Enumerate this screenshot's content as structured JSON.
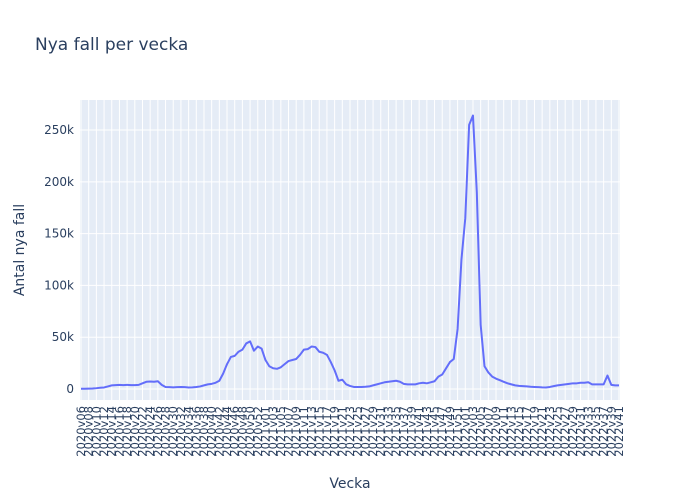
{
  "chart_data": {
    "type": "line",
    "title": "Nya fall per vecka",
    "x_label": "Vecka",
    "y_label": "Antal nya fall",
    "grid": true,
    "categories": [
      "2020v06",
      null,
      "2020v08",
      null,
      "2020v10",
      null,
      "2020v12",
      null,
      "2020v14",
      null,
      "2020v16",
      null,
      "2020v18",
      null,
      "2020v20",
      null,
      "2020v22",
      null,
      "2020v24",
      null,
      "2020v26",
      null,
      "2020v28",
      null,
      "2020v30",
      null,
      "2020v32",
      null,
      "2020v34",
      null,
      "2020v36",
      null,
      "2020v38",
      null,
      "2020v40",
      null,
      "2020v42",
      null,
      "2020v44",
      null,
      "2020v46",
      null,
      "2020v48",
      null,
      "2020v50",
      null,
      "2020v52",
      null,
      "2021v01",
      null,
      "2021v03",
      null,
      "2021v05",
      null,
      "2021v07",
      null,
      "2021v09",
      null,
      "2021v11",
      null,
      "2021v13",
      null,
      "2021v15",
      null,
      "2021v17",
      null,
      "2021v19",
      null,
      "2021v21",
      null,
      "2021v23",
      null,
      "2021v25",
      null,
      "2021v27",
      null,
      "2021v29",
      null,
      "2021v31",
      null,
      "2021v33",
      null,
      "2021v35",
      null,
      "2021v37",
      null,
      "2021v39",
      null,
      "2021v41",
      null,
      "2021v43",
      null,
      "2021v45",
      null,
      "2021v47",
      null,
      "2021v49",
      null,
      "2021v51",
      null,
      "2022v01",
      null,
      "2022v03",
      null,
      "2022v05",
      null,
      "2022v07",
      null,
      "2022v09",
      null,
      "2022v11",
      null,
      "2022v13",
      null,
      "2022v15",
      null,
      "2022v17",
      null,
      "2022v19",
      null,
      "2022v21",
      null,
      "2022v23",
      null,
      "2022v25",
      null,
      "2022v27",
      null,
      "2022v29",
      null,
      "2022v31",
      null,
      "2022v33",
      null,
      "2022v35",
      null,
      "2022v37",
      null,
      "2022v39",
      null,
      "2022v41"
    ],
    "series": [
      {
        "name": "Antal nya fall",
        "color": "#636efa",
        "values": [
          200,
          300,
          400,
          500,
          800,
          1200,
          1500,
          2500,
          3500,
          3800,
          4000,
          3800,
          4000,
          3800,
          3800,
          4000,
          5500,
          7000,
          7200,
          7000,
          7500,
          4000,
          2000,
          1800,
          1600,
          1800,
          2000,
          1800,
          1500,
          1600,
          2000,
          2500,
          3500,
          4500,
          5000,
          6000,
          8000,
          15000,
          24000,
          31000,
          32000,
          36000,
          38000,
          44000,
          46000,
          37000,
          41000,
          39000,
          28000,
          22000,
          20000,
          19500,
          21000,
          24000,
          27000,
          28000,
          29000,
          33000,
          38000,
          38500,
          41000,
          40500,
          36000,
          35000,
          33000,
          26000,
          18000,
          8000,
          9000,
          4500,
          3000,
          2000,
          2000,
          2000,
          2200,
          2500,
          3500,
          4500,
          5500,
          6500,
          7000,
          7500,
          8000,
          7000,
          5000,
          4500,
          4500,
          4500,
          5500,
          6000,
          5500,
          6500,
          7500,
          12000,
          14000,
          20000,
          26000,
          29000,
          58000,
          125000,
          165000,
          255000,
          264000,
          190000,
          62000,
          22000,
          16000,
          12000,
          10000,
          8500,
          7000,
          5500,
          4500,
          3500,
          3000,
          2800,
          2500,
          2200,
          2000,
          1800,
          1600,
          1500,
          2000,
          2800,
          3500,
          4000,
          4500,
          5000,
          5500,
          5500,
          6000,
          6000,
          6500,
          4500,
          4500,
          4500,
          4500,
          13000,
          4000,
          3500,
          3500
        ]
      }
    ],
    "ylim": [
      -10600,
      279000
    ],
    "yticks": [
      0,
      {
        "value": 50000,
        "label": "50k"
      },
      {
        "value": 100000,
        "label": "100k"
      },
      {
        "value": 150000,
        "label": "150k"
      },
      {
        "value": 200000,
        "label": "200k"
      },
      {
        "value": 250000,
        "label": "250k"
      }
    ]
  }
}
